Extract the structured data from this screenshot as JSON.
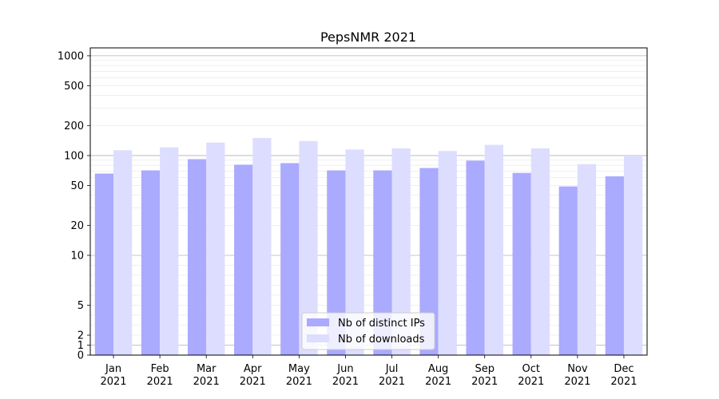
{
  "chart_data": {
    "type": "bar",
    "title": "PepsNMR 2021",
    "xlabel": "",
    "ylabel": "",
    "y_scale": "symlog",
    "ylim": [
      0,
      1200
    ],
    "y_ticks": [
      {
        "value": 0,
        "label": "0"
      },
      {
        "value": 1,
        "label": "1"
      },
      {
        "value": 2,
        "label": "2"
      },
      {
        "value": 5,
        "label": "5"
      },
      {
        "value": 10,
        "label": "10"
      },
      {
        "value": 20,
        "label": "20"
      },
      {
        "value": 50,
        "label": "50"
      },
      {
        "value": 100,
        "label": "100"
      },
      {
        "value": 200,
        "label": "200"
      },
      {
        "value": 500,
        "label": "500"
      },
      {
        "value": 1000,
        "label": "1000"
      }
    ],
    "categories": [
      {
        "month": "Jan",
        "year": "2021"
      },
      {
        "month": "Feb",
        "year": "2021"
      },
      {
        "month": "Mar",
        "year": "2021"
      },
      {
        "month": "Apr",
        "year": "2021"
      },
      {
        "month": "May",
        "year": "2021"
      },
      {
        "month": "Jun",
        "year": "2021"
      },
      {
        "month": "Jul",
        "year": "2021"
      },
      {
        "month": "Aug",
        "year": "2021"
      },
      {
        "month": "Sep",
        "year": "2021"
      },
      {
        "month": "Oct",
        "year": "2021"
      },
      {
        "month": "Nov",
        "year": "2021"
      },
      {
        "month": "Dec",
        "year": "2021"
      }
    ],
    "series": [
      {
        "name": "Nb of distinct IPs",
        "color": "#aaaaff",
        "values": [
          66,
          71,
          92,
          81,
          84,
          71,
          71,
          75,
          89,
          67,
          49,
          62
        ]
      },
      {
        "name": "Nb of downloads",
        "color": "#ddddff",
        "values": [
          113,
          121,
          135,
          150,
          140,
          115,
          118,
          111,
          128,
          118,
          82,
          100
        ]
      }
    ],
    "grid": true,
    "legend_position": "bottom-center"
  }
}
